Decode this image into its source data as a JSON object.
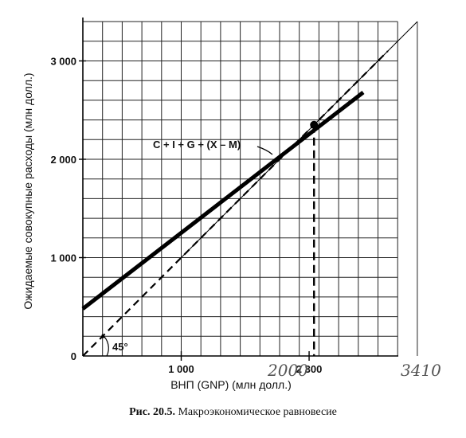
{
  "chart_data": {
    "type": "line",
    "ylabel": "Ожидаемые совокупные расходы (млн долл.)",
    "xlabel": "ВНП (GNP) (млн долл.)",
    "xlim": [
      0,
      3400
    ],
    "ylim": [
      0,
      3400
    ],
    "grid": true,
    "x_ticks": [
      {
        "value": 1000,
        "label": "1 000"
      },
      {
        "value": 2300,
        "label": "2 300"
      }
    ],
    "y_ticks": [
      {
        "value": 0,
        "label": "0"
      },
      {
        "value": 1000,
        "label": "1 000"
      },
      {
        "value": 2000,
        "label": "2 000"
      },
      {
        "value": 3000,
        "label": "3 000"
      }
    ],
    "series": [
      {
        "name": "C + I + G + (X – M)",
        "style": "thick-solid",
        "x": [
          0,
          2850
        ],
        "y": [
          480,
          2680
        ]
      },
      {
        "style": "dashed",
        "x": [
          0,
          3100
        ],
        "y": [
          0,
          3100
        ]
      },
      {
        "style": "thin-solid",
        "x": [
          1000,
          3400
        ],
        "y": [
          1000,
          3400
        ]
      }
    ],
    "annotations": {
      "angle_label": "45°",
      "equilibrium": {
        "x": 2350,
        "y": 2350
      },
      "handwritten_2000": "2000",
      "handwritten_3400": "3410"
    }
  },
  "caption": {
    "label": "Рис. 20.5.",
    "text": "Макроэкономическое равновесие"
  }
}
